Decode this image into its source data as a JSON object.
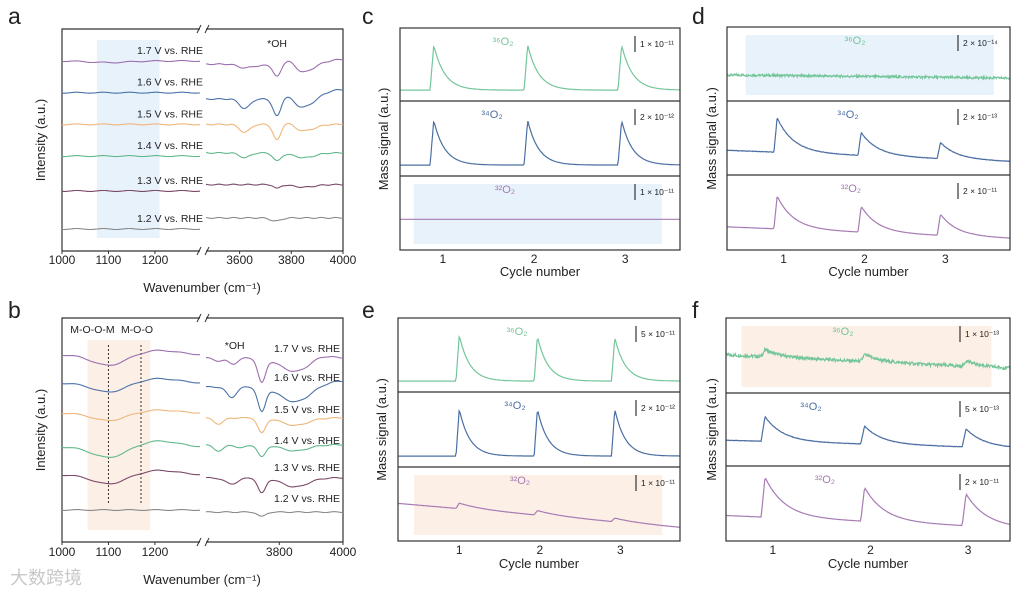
{
  "watermark": "大数跨境",
  "chart_data": [
    {
      "panel": "a",
      "type": "line",
      "xlabel": "Wavenumber (cm⁻¹)",
      "ylabel": "Intensity (a.u.)",
      "x_left_range": [
        1000,
        1297
      ],
      "x_right_range": [
        3470,
        4000
      ],
      "xticks": [
        "1000",
        "1100",
        "1200",
        "3600",
        "3800",
        "4000"
      ],
      "xtick_values": [
        1000,
        1100,
        1200,
        3600,
        3800,
        4000
      ],
      "annotations": [
        {
          "text": "*OH",
          "x": 3745
        }
      ],
      "highlight": {
        "range": [
          1075,
          1210
        ],
        "color": "#e8f2fb"
      },
      "series": [
        {
          "name": "1.7 V vs. RHE",
          "color": "#9c6fb0",
          "offset_left": 5.3,
          "offset_right": 5.2,
          "left_features": [
            [
              1100,
              0.05,
              40
            ]
          ],
          "right_features": [
            [
              3620,
              0.12,
              25
            ],
            [
              3680,
              0.05,
              20
            ],
            [
              3745,
              0.4,
              15
            ],
            [
              3790,
              -0.15,
              20
            ],
            [
              3850,
              0.25,
              35
            ],
            [
              4000,
              -0.15,
              60
            ]
          ]
        },
        {
          "name": "1.6 V vs. RHE",
          "color": "#4b73a8",
          "offset_left": 4.3,
          "offset_right": 4.1,
          "left_features": [],
          "right_features": [
            [
              3620,
              0.3,
              20
            ],
            [
              3745,
              0.55,
              15
            ],
            [
              3785,
              -0.15,
              20
            ],
            [
              3850,
              0.3,
              40
            ],
            [
              4000,
              -0.3,
              80
            ]
          ]
        },
        {
          "name": "1.5 V vs. RHE",
          "color": "#efb67a",
          "offset_left": 3.3,
          "offset_right": 3.3,
          "left_features": [],
          "right_features": [
            [
              3620,
              0.25,
              20
            ],
            [
              3745,
              0.5,
              15
            ],
            [
              3785,
              -0.1,
              20
            ],
            [
              3850,
              0.2,
              40
            ]
          ]
        },
        {
          "name": "1.4 V vs. RHE",
          "color": "#62b88a",
          "offset_left": 2.3,
          "offset_right": 2.4,
          "left_features": [],
          "right_features": [
            [
              3620,
              0.15,
              20
            ],
            [
              3745,
              0.25,
              15
            ],
            [
              3850,
              0.15,
              40
            ]
          ]
        },
        {
          "name": "1.3 V vs. RHE",
          "color": "#7b4a68",
          "offset_left": 1.2,
          "offset_right": 1.4,
          "left_features": [],
          "right_features": [
            [
              3745,
              0.12,
              12
            ],
            [
              3850,
              0.08,
              40
            ]
          ]
        },
        {
          "name": "1.2 V vs. RHE",
          "color": "#8a8a8a",
          "offset_left": 0,
          "offset_right": 0.35,
          "left_features": [],
          "right_features": [
            [
              3740,
              0.1,
              20
            ]
          ]
        }
      ]
    },
    {
      "panel": "b",
      "type": "line",
      "xlabel": "Wavenumber (cm⁻¹)",
      "ylabel": "Intensity (a.u.)",
      "x_left_range": [
        1000,
        1297
      ],
      "x_right_range": [
        3570,
        4000
      ],
      "xticks": [
        "1000",
        "1100",
        "1200",
        "3800",
        "4000"
      ],
      "xtick_values": [
        1000,
        1100,
        1200,
        3800,
        4000
      ],
      "annotations": [
        {
          "text": "*OH",
          "x": 3660
        }
      ],
      "reference_lines": [
        {
          "text": "M-O-O-M",
          "x": 1100
        },
        {
          "text": "M-O-O",
          "x": 1170
        }
      ],
      "highlight": {
        "range": [
          1055,
          1190
        ],
        "color": "#fcefe6"
      },
      "series": [
        {
          "name": "1.7 V vs. RHE",
          "color": "#9c6fb0",
          "offset_left": 5.17,
          "offset_right": 5.07,
          "left_features": [
            [
              1100,
              0.35,
              35
            ],
            [
              1210,
              -0.15,
              40
            ]
          ],
          "right_features": [
            [
              3610,
              0.1,
              15
            ],
            [
              3655,
              0.2,
              15
            ],
            [
              3745,
              0.8,
              12
            ],
            [
              3850,
              0.45,
              45
            ],
            [
              3930,
              -0.1,
              30
            ]
          ]
        },
        {
          "name": "1.6 V vs. RHE",
          "color": "#4b73a8",
          "offset_left": 4.23,
          "offset_right": 4.1,
          "left_features": [
            [
              1100,
              0.3,
              35
            ],
            [
              1210,
              -0.15,
              40
            ]
          ],
          "right_features": [
            [
              3650,
              0.35,
              15
            ],
            [
              3745,
              0.8,
              12
            ],
            [
              3850,
              0.5,
              45
            ],
            [
              4000,
              -0.2,
              60
            ]
          ]
        },
        {
          "name": "1.5 V vs. RHE",
          "color": "#efb67a",
          "offset_left": 3.23,
          "offset_right": 3.07,
          "left_features": [
            [
              1100,
              0.25,
              35
            ],
            [
              1210,
              -0.1,
              40
            ]
          ],
          "right_features": [
            [
              3610,
              0.2,
              15
            ],
            [
              3745,
              0.5,
              12
            ],
            [
              3850,
              0.25,
              40
            ]
          ]
        },
        {
          "name": "1.4 V vs. RHE",
          "color": "#62b88a",
          "offset_left": 2.1,
          "offset_right": 2.17,
          "left_features": [
            [
              1100,
              0.35,
              35
            ],
            [
              1210,
              -0.2,
              40
            ]
          ],
          "right_features": [
            [
              3610,
              0.2,
              15
            ],
            [
              3680,
              0.1,
              15
            ],
            [
              3745,
              0.4,
              12
            ],
            [
              3850,
              0.2,
              40
            ]
          ]
        },
        {
          "name": "1.3 V vs. RHE",
          "color": "#7b4a68",
          "offset_left": 1.17,
          "offset_right": 1.07,
          "left_features": [
            [
              1100,
              0.3,
              35
            ],
            [
              1210,
              -0.15,
              40
            ]
          ],
          "right_features": [
            [
              3650,
              0.2,
              20
            ],
            [
              3745,
              0.5,
              12
            ],
            [
              3850,
              0.3,
              40
            ]
          ]
        },
        {
          "name": "1.2 V vs. RHE",
          "color": "#8a8a8a",
          "offset_left": 0,
          "offset_right": -0.07,
          "left_features": [],
          "right_features": [
            [
              3745,
              0.15,
              12
            ]
          ]
        }
      ]
    },
    {
      "panel": "c",
      "type": "line",
      "xlabel": "Cycle number",
      "ylabel": "Mass signal (a.u.)",
      "x_range": [
        0.53,
        3.6
      ],
      "xticks": [
        "1",
        "2",
        "3"
      ],
      "xtick_values": [
        1,
        2,
        3
      ],
      "series": [
        {
          "name": "³⁶O₂",
          "color": "#74c69a",
          "scale_bar": "1 × 10⁻¹¹",
          "baseline": 0.02,
          "slope": 0,
          "noise": 0,
          "tau": 0.12,
          "peak_cycles": [
            0.9,
            1.93,
            2.96
          ],
          "peak_heights": [
            1,
            1,
            1
          ]
        },
        {
          "name": "³⁴O₂",
          "color": "#4c6fa3",
          "scale_bar": "2 × 10⁻¹²",
          "baseline": 0.02,
          "slope": 0,
          "noise": 0,
          "tau": 0.12,
          "peak_cycles": [
            0.9,
            1.93,
            2.96
          ],
          "peak_heights": [
            0.95,
            0.95,
            0.95
          ]
        },
        {
          "name": "³²O₂",
          "color": "#a77bb4",
          "scale_bar": "1 × 10⁻¹¹",
          "baseline": 0.45,
          "slope": 0,
          "noise": 0,
          "tau": 0.1,
          "peak_cycles": [],
          "peak_heights": [],
          "highlight": {
            "range": [
              0.68,
              3.4
            ],
            "color": "#e8f2fb"
          }
        }
      ]
    },
    {
      "panel": "d",
      "type": "line",
      "xlabel": "Cycle number",
      "ylabel": "Mass signal (a.u.)",
      "x_range": [
        0.3,
        3.8
      ],
      "xticks": [
        "1",
        "2",
        "3"
      ],
      "xtick_values": [
        1,
        2,
        3
      ],
      "series": [
        {
          "name": "³⁶O₂",
          "color": "#74c69a",
          "scale_bar": "2 × 10⁻¹⁴",
          "baseline": 0.35,
          "slope": -0.02,
          "noise": 0.05,
          "tau": 0.1,
          "peak_cycles": [],
          "peak_heights": [],
          "highlight": {
            "range": [
              0.53,
              3.6
            ],
            "color": "#e8f2fb"
          }
        },
        {
          "name": "³⁴O₂",
          "color": "#4c6fa3",
          "scale_bar": "2 × 10⁻¹³",
          "baseline": 0.32,
          "slope": -0.07,
          "noise": 0.01,
          "tau": 0.2,
          "peak_cycles": [
            0.92,
            1.96,
            2.94
          ],
          "peak_heights": [
            0.75,
            0.5,
            0.35
          ]
        },
        {
          "name": "³²O₂",
          "color": "#a77bb4",
          "scale_bar": "2 × 10⁻¹¹",
          "baseline": 0.28,
          "slope": -0.07,
          "noise": 0,
          "tau": 0.2,
          "peak_cycles": [
            0.92,
            1.96,
            2.94
          ],
          "peak_heights": [
            0.7,
            0.55,
            0.45
          ]
        }
      ]
    },
    {
      "panel": "e",
      "type": "line",
      "xlabel": "Cycle number",
      "ylabel": "Mass signal (a.u.)",
      "x_range": [
        0.24,
        3.74
      ],
      "xticks": [
        "1",
        "2",
        "3"
      ],
      "xtick_values": [
        1,
        2,
        3
      ],
      "series": [
        {
          "name": "³⁶O₂",
          "color": "#74c69a",
          "scale_bar": "5 × 10⁻¹¹",
          "baseline": 0.02,
          "slope": 0,
          "noise": 0,
          "tau": 0.13,
          "peak_cycles": [
            1.0,
            1.97,
            2.93
          ],
          "peak_heights": [
            1,
            0.97,
            0.95
          ]
        },
        {
          "name": "³⁴O₂",
          "color": "#4c6fa3",
          "scale_bar": "2 × 10⁻¹²",
          "baseline": 0.02,
          "slope": 0,
          "noise": 0,
          "tau": 0.13,
          "peak_cycles": [
            1.0,
            1.97,
            2.93
          ],
          "peak_heights": [
            1,
            1,
            1
          ]
        },
        {
          "name": "³²O₂",
          "color": "#a77bb4",
          "scale_bar": "1 × 10⁻¹¹",
          "baseline": 0.6,
          "slope": -0.15,
          "noise": 0,
          "tau": 0.3,
          "peak_cycles": [
            1.0,
            1.97,
            2.93
          ],
          "peak_heights": [
            0.12,
            0.1,
            0.08
          ],
          "highlight": {
            "range": [
              0.44,
              3.52
            ],
            "color": "#fcefe6"
          }
        }
      ]
    },
    {
      "panel": "f",
      "type": "line",
      "xlabel": "Cycle number",
      "ylabel": "Mass signal (a.u.)",
      "x_range": [
        0.52,
        3.43
      ],
      "xticks": [
        "1",
        "2",
        "3"
      ],
      "xtick_values": [
        1,
        2,
        3
      ],
      "series": [
        {
          "name": "³⁶O₂",
          "color": "#74c69a",
          "scale_bar": "1 × 10⁻¹³",
          "baseline": 0.6,
          "slope": -0.1,
          "noise": 0.07,
          "tau": 0.15,
          "peak_cycles": [
            0.92,
            1.94,
            2.98
          ],
          "peak_heights": [
            0.15,
            0.15,
            0.12
          ],
          "highlight": {
            "range": [
              0.68,
              3.24
            ],
            "color": "#fcefe6"
          }
        },
        {
          "name": "³⁴O₂",
          "color": "#4c6fa3",
          "scale_bar": "5 × 10⁻¹³",
          "baseline": 0.35,
          "slope": -0.06,
          "noise": 0.01,
          "tau": 0.18,
          "peak_cycles": [
            0.92,
            1.94,
            2.98
          ],
          "peak_heights": [
            0.55,
            0.4,
            0.4
          ]
        },
        {
          "name": "³²O₂",
          "color": "#a77bb4",
          "scale_bar": "2 × 10⁻¹¹",
          "baseline": 0.33,
          "slope": -0.09,
          "noise": 0,
          "tau": 0.2,
          "peak_cycles": [
            0.92,
            1.94,
            2.98
          ],
          "peak_heights": [
            0.85,
            0.72,
            0.68
          ]
        }
      ]
    }
  ]
}
